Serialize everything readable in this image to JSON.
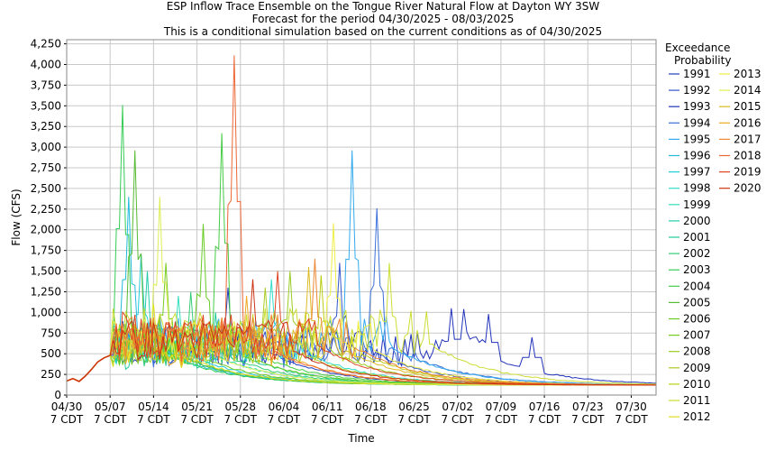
{
  "chart_data": {
    "type": "line",
    "title": "ESP Inflow Trace Ensemble on the Tongue River Natural Flow at Dayton WY 3SW",
    "subtitle": "Forecast for the period 04/30/2025 - 08/03/2025",
    "subtitle2": "This is a conditional simulation based on the current conditions as of 04/30/2025",
    "xlabel": "Time",
    "ylabel": "Flow (CFS)",
    "xlim": [
      "2025-04-30",
      "2025-08-03"
    ],
    "ylim": [
      0,
      4300
    ],
    "grid": true,
    "x_ticks": [
      {
        "date": "2025-04-30",
        "label1": "04/30",
        "label2": "7 CDT"
      },
      {
        "date": "2025-05-07",
        "label1": "05/07",
        "label2": "7 CDT"
      },
      {
        "date": "2025-05-14",
        "label1": "05/14",
        "label2": "7 CDT"
      },
      {
        "date": "2025-05-21",
        "label1": "05/21",
        "label2": "7 CDT"
      },
      {
        "date": "2025-05-28",
        "label1": "05/28",
        "label2": "7 CDT"
      },
      {
        "date": "2025-06-04",
        "label1": "06/04",
        "label2": "7 CDT"
      },
      {
        "date": "2025-06-11",
        "label1": "06/11",
        "label2": "7 CDT"
      },
      {
        "date": "2025-06-18",
        "label1": "06/18",
        "label2": "7 CDT"
      },
      {
        "date": "2025-06-25",
        "label1": "06/25",
        "label2": "7 CDT"
      },
      {
        "date": "2025-07-02",
        "label1": "07/02",
        "label2": "7 CDT"
      },
      {
        "date": "2025-07-09",
        "label1": "07/09",
        "label2": "7 CDT"
      },
      {
        "date": "2025-07-16",
        "label1": "07/16",
        "label2": "7 CDT"
      },
      {
        "date": "2025-07-23",
        "label1": "07/23",
        "label2": "7 CDT"
      },
      {
        "date": "2025-07-30",
        "label1": "07/30",
        "label2": "7 CDT"
      }
    ],
    "y_ticks": [
      {
        "value": 0,
        "label": "0"
      },
      {
        "value": 250,
        "label": "250"
      },
      {
        "value": 500,
        "label": "500"
      },
      {
        "value": 750,
        "label": "750"
      },
      {
        "value": 1000,
        "label": "1,000"
      },
      {
        "value": 1250,
        "label": "1,250"
      },
      {
        "value": 1500,
        "label": "1,500"
      },
      {
        "value": 1750,
        "label": "1,750"
      },
      {
        "value": 2000,
        "label": "2,000"
      },
      {
        "value": 2250,
        "label": "2,250"
      },
      {
        "value": 2500,
        "label": "2,500"
      },
      {
        "value": 2750,
        "label": "2,750"
      },
      {
        "value": 3000,
        "label": "3,000"
      },
      {
        "value": 3250,
        "label": "3,250"
      },
      {
        "value": 3500,
        "label": "3,500"
      },
      {
        "value": 3750,
        "label": "3,750"
      },
      {
        "value": 4000,
        "label": "4,000"
      },
      {
        "value": 4250,
        "label": "4,250"
      }
    ],
    "legend": {
      "title_line1": "Exceedance",
      "title_line2": "Probability",
      "placement": "right"
    },
    "observed_series": {
      "color": "#cc3300",
      "points": [
        [
          "2025-04-30",
          170
        ],
        [
          "2025-05-01",
          200
        ],
        [
          "2025-05-02",
          165
        ],
        [
          "2025-05-03",
          230
        ],
        [
          "2025-05-04",
          310
        ],
        [
          "2025-05-05",
          400
        ],
        [
          "2025-05-06",
          450
        ],
        [
          "2025-05-07",
          480
        ]
      ]
    },
    "series": [
      {
        "name": "1991",
        "color": "#1f3fbf",
        "peak_date": "2025-05-26",
        "peak": 1300,
        "base": 550
      },
      {
        "name": "1992",
        "color": "#3355cc",
        "peak_date": "2025-06-13",
        "peak": 1600,
        "base": 500
      },
      {
        "name": "1993",
        "color": "#2233bb",
        "peak_date": "2025-07-01",
        "peak": 1050,
        "base": 480,
        "late_peaks": [
          [
            "2025-07-03",
            1040
          ],
          [
            "2025-07-07",
            980
          ],
          [
            "2025-07-14",
            700
          ]
        ]
      },
      {
        "name": "1994",
        "color": "#3a6fd8",
        "peak_date": "2025-06-19",
        "peak": 2260,
        "base": 450
      },
      {
        "name": "1995",
        "color": "#33aaee",
        "peak_date": "2025-06-15",
        "peak": 2960,
        "base": 600
      },
      {
        "name": "1996",
        "color": "#22bbdd",
        "peak_date": "2025-05-10",
        "peak": 2400,
        "base": 520
      },
      {
        "name": "1997",
        "color": "#22ccdd",
        "peak_date": "2025-05-12",
        "peak": 1700,
        "base": 560
      },
      {
        "name": "1998",
        "color": "#33ddcc",
        "peak_date": "2025-06-02",
        "peak": 1400,
        "base": 500
      },
      {
        "name": "1999",
        "color": "#33ddbb",
        "peak_date": "2025-05-18",
        "peak": 1200,
        "base": 480
      },
      {
        "name": "2000",
        "color": "#22ccaa",
        "peak_date": "2025-05-13",
        "peak": 1500,
        "base": 460
      },
      {
        "name": "2001",
        "color": "#22cc99",
        "peak_date": "2025-05-24",
        "peak": 1000,
        "base": 420
      },
      {
        "name": "2002",
        "color": "#33cc77",
        "peak_date": "2025-05-20",
        "peak": 1250,
        "base": 470
      },
      {
        "name": "2003",
        "color": "#33cc55",
        "peak_date": "2025-05-09",
        "peak": 3510,
        "base": 540
      },
      {
        "name": "2004",
        "color": "#44cc44",
        "peak_date": "2025-05-25",
        "peak": 3170,
        "base": 480
      },
      {
        "name": "2005",
        "color": "#55bb33",
        "peak_date": "2025-05-11",
        "peak": 2960,
        "base": 520
      },
      {
        "name": "2006",
        "color": "#66cc22",
        "peak_date": "2025-05-22",
        "peak": 2070,
        "base": 500
      },
      {
        "name": "2007",
        "color": "#77cc22",
        "peak_date": "2025-05-16",
        "peak": 1600,
        "base": 450
      },
      {
        "name": "2008",
        "color": "#99cc22",
        "peak_date": "2025-06-05",
        "peak": 1500,
        "base": 560
      },
      {
        "name": "2009",
        "color": "#aacc22",
        "peak_date": "2025-06-01",
        "peak": 1300,
        "base": 500
      },
      {
        "name": "2010",
        "color": "#bbcc11",
        "peak_date": "2025-06-10",
        "peak": 1450,
        "base": 520
      },
      {
        "name": "2011",
        "color": "#ccdd33",
        "peak_date": "2025-06-21",
        "peak": 1600,
        "base": 650
      },
      {
        "name": "2012",
        "color": "#dddd22",
        "peak_date": "2025-05-14",
        "peak": 1100,
        "base": 440
      },
      {
        "name": "2013",
        "color": "#eeee44",
        "peak_date": "2025-06-12",
        "peak": 2080,
        "base": 560
      },
      {
        "name": "2014",
        "color": "#ddee55",
        "peak_date": "2025-05-15",
        "peak": 2400,
        "base": 600
      },
      {
        "name": "2015",
        "color": "#ddbb22",
        "peak_date": "2025-06-08",
        "peak": 1550,
        "base": 540
      },
      {
        "name": "2016",
        "color": "#eeaa22",
        "peak_date": "2025-05-29",
        "peak": 1200,
        "base": 480
      },
      {
        "name": "2017",
        "color": "#ee8833",
        "peak_date": "2025-06-09",
        "peak": 1650,
        "base": 600
      },
      {
        "name": "2018",
        "color": "#ee6633",
        "peak_date": "2025-05-27",
        "peak": 4110,
        "base": 550
      },
      {
        "name": "2019",
        "color": "#dd4422",
        "peak_date": "2025-06-03",
        "peak": 1500,
        "base": 620
      },
      {
        "name": "2020",
        "color": "#cc3311",
        "peak_date": "2025-05-30",
        "peak": 1400,
        "base": 560
      }
    ]
  }
}
